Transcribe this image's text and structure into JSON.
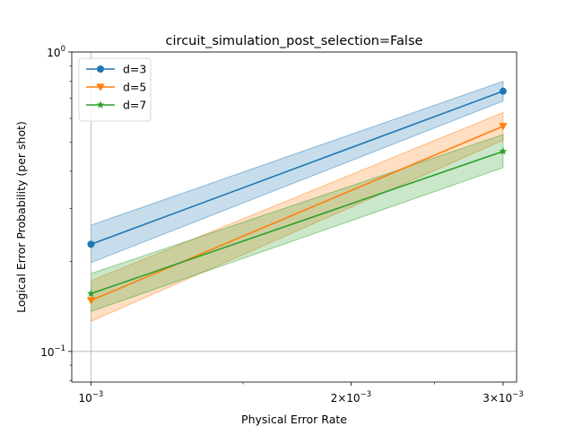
{
  "chart_data": {
    "type": "line",
    "title": "circuit_simulation_post_selection=False",
    "xlabel": "Physical Error Rate",
    "ylabel": "Logical Error Probability (per shot)",
    "x_scale": "log",
    "y_scale": "log",
    "xlim": [
      0.00095,
      0.00311
    ],
    "ylim": [
      0.079,
      1.0
    ],
    "x_ticks": [
      {
        "value": 0.001,
        "mantissa": "",
        "exponent": "−3"
      },
      {
        "value": 0.002,
        "mantissa": "2×",
        "exponent": "−3"
      },
      {
        "value": 0.003,
        "mantissa": "3×",
        "exponent": "−3"
      }
    ],
    "y_ticks": [
      {
        "value": 0.1,
        "exponent": "−1"
      },
      {
        "value": 1.0,
        "exponent": "0"
      }
    ],
    "grid": {
      "x_major": true,
      "y_major": true
    },
    "legend_position": "top-left",
    "series": [
      {
        "name": "d=3",
        "color": "#1f77b4",
        "marker": "circle",
        "x": [
          0.001,
          0.003
        ],
        "y": [
          0.228,
          0.74
        ],
        "y_low": [
          0.198,
          0.686
        ],
        "y_high": [
          0.264,
          0.798
        ]
      },
      {
        "name": "d=5",
        "color": "#ff7f0e",
        "marker": "triangle-down",
        "x": [
          0.001,
          0.003
        ],
        "y": [
          0.148,
          0.565
        ],
        "y_low": [
          0.126,
          0.507
        ],
        "y_high": [
          0.172,
          0.628
        ]
      },
      {
        "name": "d=7",
        "color": "#2ca02c",
        "marker": "star",
        "x": [
          0.001,
          0.003
        ],
        "y": [
          0.156,
          0.466
        ],
        "y_low": [
          0.136,
          0.411
        ],
        "y_high": [
          0.182,
          0.53
        ]
      }
    ]
  }
}
